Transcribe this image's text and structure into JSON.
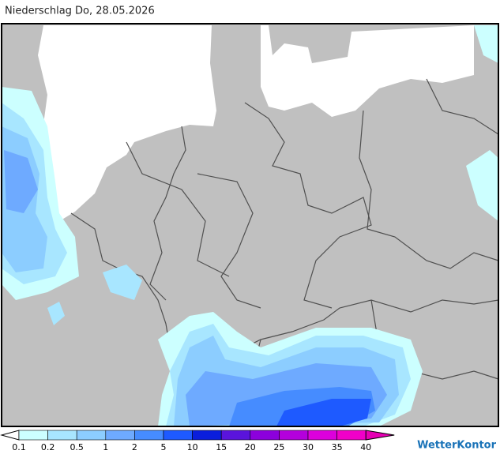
{
  "title": "Niederschlag Do, 28.05.2026",
  "legend": {
    "levels": [
      0.1,
      0.2,
      0.5,
      1,
      2,
      5,
      10,
      15,
      20,
      25,
      30,
      35,
      40
    ],
    "colors": [
      "#ffffff",
      "#ccffff",
      "#a8e6ff",
      "#8ccdff",
      "#6eaaff",
      "#468cff",
      "#1e5aff",
      "#0a1edc",
      "#5a14dc",
      "#8c00dc",
      "#b400dc",
      "#dc00dc",
      "#f000c8",
      "#e600b4"
    ]
  },
  "brand": "WetterKontor"
}
